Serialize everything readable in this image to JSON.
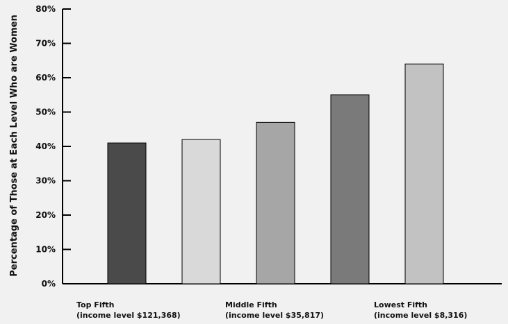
{
  "chart_data": {
    "type": "bar",
    "title": "",
    "xlabel": "",
    "ylabel": "Percentage of Those at Each Level Who are Women",
    "ylim": [
      0,
      80
    ],
    "yticks": [
      "0%",
      "10%",
      "20%",
      "30%",
      "40%",
      "50%",
      "60%",
      "70%",
      "80%"
    ],
    "grid": false,
    "bars": [
      {
        "value": 41,
        "color": "#4a4a4a"
      },
      {
        "value": 42,
        "color": "#d9d9d9"
      },
      {
        "value": 47,
        "color": "#a6a6a6"
      },
      {
        "value": 55,
        "color": "#7a7a7a"
      },
      {
        "value": 64,
        "color": "#c2c2c2"
      }
    ],
    "category_labels": [
      {
        "line1": "Top Fifth",
        "line2": "(income level $121,368)",
        "under_bar": 0
      },
      {
        "line1": "Middle Fifth",
        "line2": "(income level $35,817)",
        "under_bar": 2
      },
      {
        "line1": "Lowest Fifth",
        "line2": "(income level $8,316)",
        "under_bar": 4
      }
    ]
  }
}
